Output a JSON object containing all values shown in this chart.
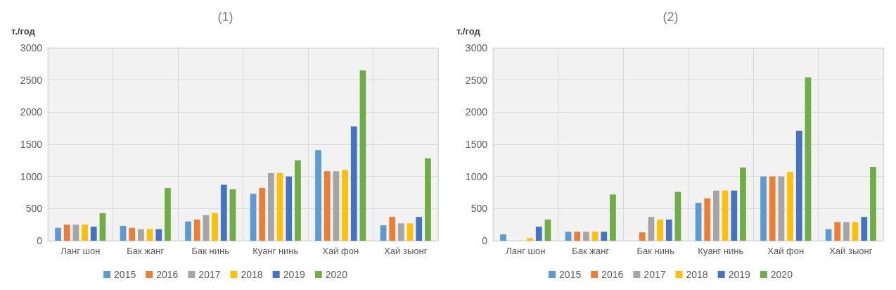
{
  "chart_data": [
    {
      "type": "bar",
      "title": "(1)",
      "ylabel": "т./год",
      "categories": [
        "Ланг шон",
        "Бак жанг",
        "Бак нинь",
        "Куанг нинь",
        "Хай фон",
        "Хай зыонг"
      ],
      "ylim": [
        0,
        3000
      ],
      "yticks": [
        0,
        500,
        1000,
        1500,
        2000,
        2500,
        3000
      ],
      "grid": true,
      "legend": "bottom",
      "series": [
        {
          "name": "2015",
          "color": "#5b9bd5",
          "values": [
            200,
            230,
            300,
            730,
            1410,
            240
          ]
        },
        {
          "name": "2016",
          "color": "#ed7d31",
          "values": [
            250,
            200,
            330,
            820,
            1080,
            370
          ]
        },
        {
          "name": "2017",
          "color": "#a5a5a5",
          "values": [
            250,
            180,
            400,
            1050,
            1080,
            270
          ]
        },
        {
          "name": "2018",
          "color": "#ffc000",
          "values": [
            250,
            180,
            430,
            1050,
            1100,
            270
          ]
        },
        {
          "name": "2019",
          "color": "#4472c4",
          "values": [
            220,
            180,
            870,
            1000,
            1780,
            370
          ]
        },
        {
          "name": "2020",
          "color": "#70ad47",
          "values": [
            430,
            820,
            800,
            1250,
            2650,
            1280
          ]
        }
      ]
    },
    {
      "type": "bar",
      "title": "(2)",
      "ylabel": "т./год",
      "categories": [
        "Ланг шон",
        "Бак жанг",
        "Бак нинь",
        "Куанг нинь",
        "Хай фон",
        "Хай зыонг"
      ],
      "ylim": [
        0,
        3000
      ],
      "yticks": [
        0,
        500,
        1000,
        1500,
        2000,
        2500,
        3000
      ],
      "grid": true,
      "legend": "bottom",
      "series": [
        {
          "name": "2015",
          "color": "#5b9bd5",
          "values": [
            100,
            140,
            0,
            590,
            1000,
            180
          ]
        },
        {
          "name": "2016",
          "color": "#ed7d31",
          "values": [
            0,
            140,
            130,
            660,
            1000,
            290
          ]
        },
        {
          "name": "2017",
          "color": "#a5a5a5",
          "values": [
            0,
            140,
            370,
            780,
            1000,
            290
          ]
        },
        {
          "name": "2018",
          "color": "#ffc000",
          "values": [
            40,
            140,
            330,
            780,
            1070,
            290
          ]
        },
        {
          "name": "2019",
          "color": "#4472c4",
          "values": [
            220,
            140,
            330,
            780,
            1710,
            370
          ]
        },
        {
          "name": "2020",
          "color": "#70ad47",
          "values": [
            330,
            720,
            760,
            1140,
            2540,
            1150
          ]
        }
      ]
    }
  ]
}
